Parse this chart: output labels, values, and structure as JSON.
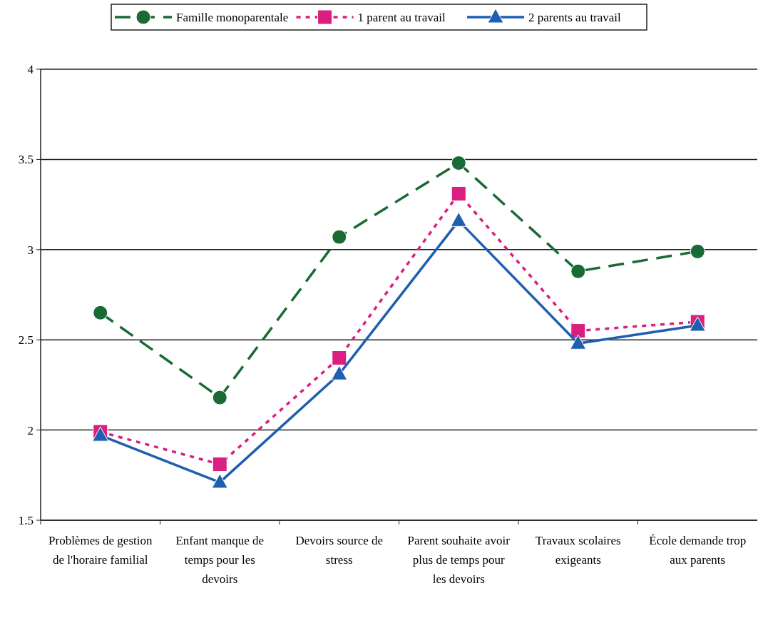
{
  "chart_data": {
    "type": "line",
    "categories": [
      "Problèmes de gestion de l'horaire familial",
      "Enfant manque de temps pour les devoirs",
      "Devoirs source de stress",
      "Parent souhaite avoir plus de temps pour les devoirs",
      "Travaux scolaires exigeants",
      "École demande trop aux parents"
    ],
    "series": [
      {
        "name": "Famille monoparentale",
        "color": "#1a6a36",
        "marker": "circle",
        "line_style": "dashed",
        "values": [
          2.65,
          2.18,
          3.07,
          3.48,
          2.88,
          2.99
        ]
      },
      {
        "name": "1 parent au travail",
        "color": "#d91f7f",
        "marker": "square",
        "line_style": "dotted",
        "values": [
          1.99,
          1.81,
          2.4,
          3.31,
          2.55,
          2.6
        ]
      },
      {
        "name": "2 parents au travail",
        "color": "#1f5fb0",
        "marker": "triangle",
        "line_style": "solid",
        "values": [
          1.97,
          1.71,
          2.31,
          3.16,
          2.48,
          2.58
        ]
      }
    ],
    "ylim": [
      1.5,
      4
    ],
    "yticks": [
      1.5,
      2,
      2.5,
      3,
      3.5,
      4
    ],
    "grid": "y",
    "legend": "top"
  }
}
